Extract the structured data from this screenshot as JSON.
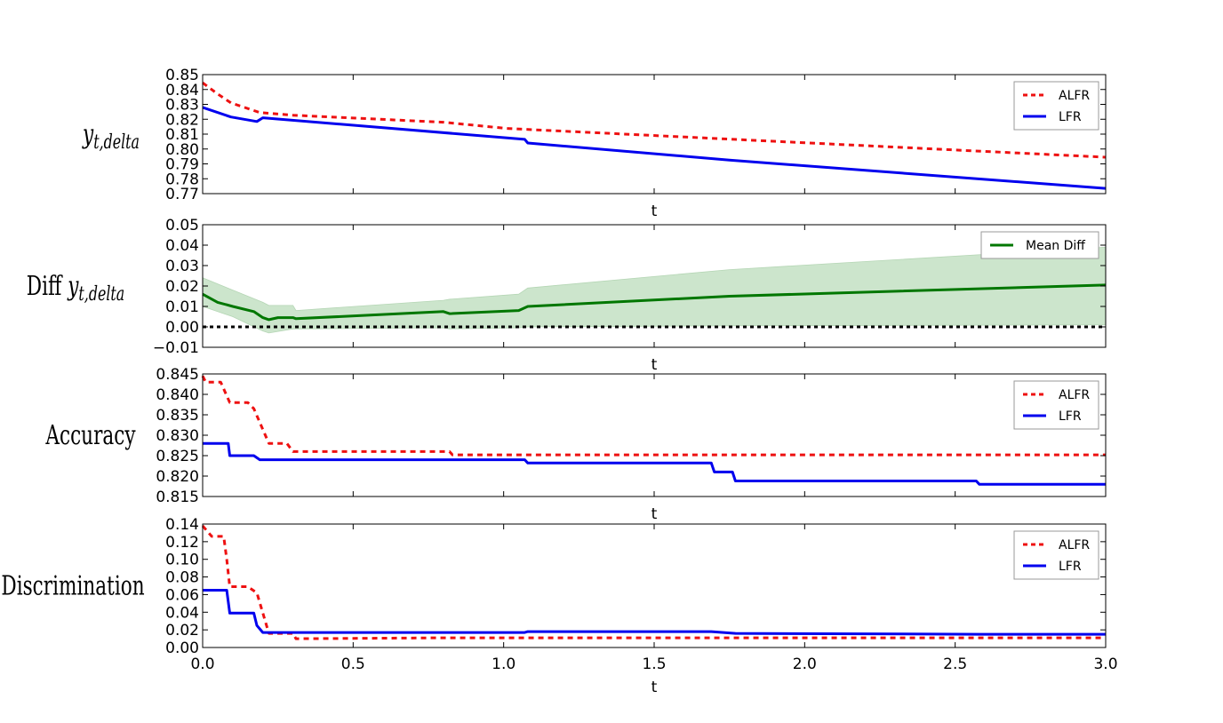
{
  "chart_data": [
    {
      "type": "line",
      "ylabel": "y_{t,delta}",
      "ylabel_parts": {
        "prefix": "",
        "main": "y",
        "sub": "t,delta"
      },
      "xlabel": "t",
      "xlim": [
        0,
        3
      ],
      "ylim": [
        0.77,
        0.85
      ],
      "xticks": [
        "0.0",
        "0.5",
        "1.0",
        "1.5",
        "2.0",
        "2.5",
        "3.0"
      ],
      "yticks": [
        "0.77",
        "0.78",
        "0.79",
        "0.80",
        "0.81",
        "0.82",
        "0.83",
        "0.84",
        "0.85"
      ],
      "show_xticklabels": false,
      "legend": "top-right",
      "series": [
        {
          "name": "ALFR",
          "color": "#ee1111",
          "style": "dotted",
          "x": [
            0,
            0.05,
            0.094,
            0.19,
            0.3,
            0.8,
            1.01,
            3.0
          ],
          "y": [
            0.8445,
            0.837,
            0.831,
            0.8245,
            0.8227,
            0.818,
            0.8138,
            0.7945
          ]
        },
        {
          "name": "LFR",
          "color": "#0000ee",
          "style": "solid",
          "x": [
            0,
            0.094,
            0.18,
            0.2,
            1.07,
            1.08,
            1.75,
            3.0
          ],
          "y": [
            0.828,
            0.8215,
            0.8185,
            0.821,
            0.8065,
            0.804,
            0.7925,
            0.7735
          ]
        }
      ]
    },
    {
      "type": "line",
      "ylabel": "Diff y_{t,delta}",
      "ylabel_parts": {
        "prefix": "Diff",
        "main": "y",
        "sub": "t,delta"
      },
      "xlabel": "t",
      "xlim": [
        0,
        3
      ],
      "ylim": [
        -0.01,
        0.05
      ],
      "xticks": [
        "0.0",
        "0.5",
        "1.0",
        "1.5",
        "2.0",
        "2.5",
        "3.0"
      ],
      "yticks": [
        "-0.01",
        "0.00",
        "0.01",
        "0.02",
        "0.03",
        "0.04",
        "0.05"
      ],
      "show_xticklabels": false,
      "legend": "top-right",
      "reference_line": {
        "y": 0,
        "color": "#000000",
        "style": "dotted"
      },
      "band": {
        "color": "#cce5cc",
        "x": [
          0,
          0.1,
          0.2,
          0.22,
          0.3,
          0.31,
          0.8,
          0.82,
          1.05,
          1.08,
          1.75,
          3.0
        ],
        "upper": [
          0.024,
          0.018,
          0.012,
          0.0105,
          0.0105,
          0.008,
          0.013,
          0.0135,
          0.016,
          0.019,
          0.028,
          0.039
        ],
        "lower": [
          0.01,
          0.005,
          -0.002,
          -0.003,
          -0.001,
          -0.001,
          -0.0005,
          -0.001,
          -0.0005,
          0.0,
          0.0005,
          0.001
        ]
      },
      "series": [
        {
          "name": "Mean Diff",
          "color": "#007700",
          "style": "solid",
          "x": [
            0,
            0.05,
            0.1,
            0.17,
            0.2,
            0.22,
            0.25,
            0.3,
            0.31,
            0.8,
            0.82,
            1.05,
            1.08,
            1.75,
            3.0
          ],
          "y": [
            0.016,
            0.012,
            0.01,
            0.0075,
            0.0045,
            0.0035,
            0.0045,
            0.0045,
            0.004,
            0.0075,
            0.0065,
            0.008,
            0.01,
            0.015,
            0.0205
          ]
        }
      ]
    },
    {
      "type": "line",
      "ylabel": "Accuracy",
      "ylabel_parts": {
        "prefix": "Accuracy",
        "main": "",
        "sub": ""
      },
      "xlabel": "t",
      "xlim": [
        0,
        3
      ],
      "ylim": [
        0.815,
        0.845
      ],
      "xticks": [
        "0.0",
        "0.5",
        "1.0",
        "1.5",
        "2.0",
        "2.5",
        "3.0"
      ],
      "yticks": [
        "0.815",
        "0.820",
        "0.825",
        "0.830",
        "0.835",
        "0.840",
        "0.845"
      ],
      "show_xticklabels": false,
      "legend": "top-right",
      "series": [
        {
          "name": "ALFR",
          "color": "#ee1111",
          "style": "dotted",
          "x": [
            0,
            0.01,
            0.06,
            0.09,
            0.15,
            0.17,
            0.22,
            0.28,
            0.3,
            0.82,
            0.83,
            3.0
          ],
          "y": [
            0.8445,
            0.843,
            0.843,
            0.838,
            0.838,
            0.8365,
            0.828,
            0.828,
            0.826,
            0.826,
            0.8252,
            0.8252
          ]
        },
        {
          "name": "LFR",
          "color": "#0000ee",
          "style": "solid",
          "x": [
            0,
            0.085,
            0.09,
            0.17,
            0.19,
            1.07,
            1.08,
            1.69,
            1.7,
            1.76,
            1.77,
            2.57,
            2.58,
            3.0
          ],
          "y": [
            0.828,
            0.828,
            0.825,
            0.825,
            0.824,
            0.824,
            0.8232,
            0.8232,
            0.821,
            0.821,
            0.8188,
            0.8188,
            0.818,
            0.818
          ]
        }
      ]
    },
    {
      "type": "line",
      "ylabel": "Discrimination",
      "ylabel_parts": {
        "prefix": "Discrimination",
        "main": "",
        "sub": ""
      },
      "xlabel": "t",
      "xlim": [
        0,
        3
      ],
      "ylim": [
        0,
        0.14
      ],
      "xticks": [
        "0.0",
        "0.5",
        "1.0",
        "1.5",
        "2.0",
        "2.5",
        "3.0"
      ],
      "yticks": [
        "0.00",
        "0.02",
        "0.04",
        "0.06",
        "0.08",
        "0.10",
        "0.12",
        "0.14"
      ],
      "show_xticklabels": true,
      "legend": "top-right",
      "series": [
        {
          "name": "ALFR",
          "color": "#ee1111",
          "style": "dotted",
          "x": [
            0,
            0.03,
            0.07,
            0.08,
            0.09,
            0.15,
            0.18,
            0.22,
            0.3,
            0.31,
            0.8,
            3.0
          ],
          "y": [
            0.138,
            0.126,
            0.126,
            0.1,
            0.069,
            0.069,
            0.062,
            0.016,
            0.016,
            0.01,
            0.011,
            0.011
          ]
        },
        {
          "name": "LFR",
          "color": "#0000ee",
          "style": "solid",
          "x": [
            0,
            0.08,
            0.09,
            0.17,
            0.18,
            0.2,
            1.07,
            1.08,
            1.69,
            1.77,
            2.58,
            3.0
          ],
          "y": [
            0.065,
            0.065,
            0.039,
            0.039,
            0.025,
            0.017,
            0.017,
            0.018,
            0.018,
            0.016,
            0.015,
            0.015
          ]
        }
      ]
    }
  ]
}
